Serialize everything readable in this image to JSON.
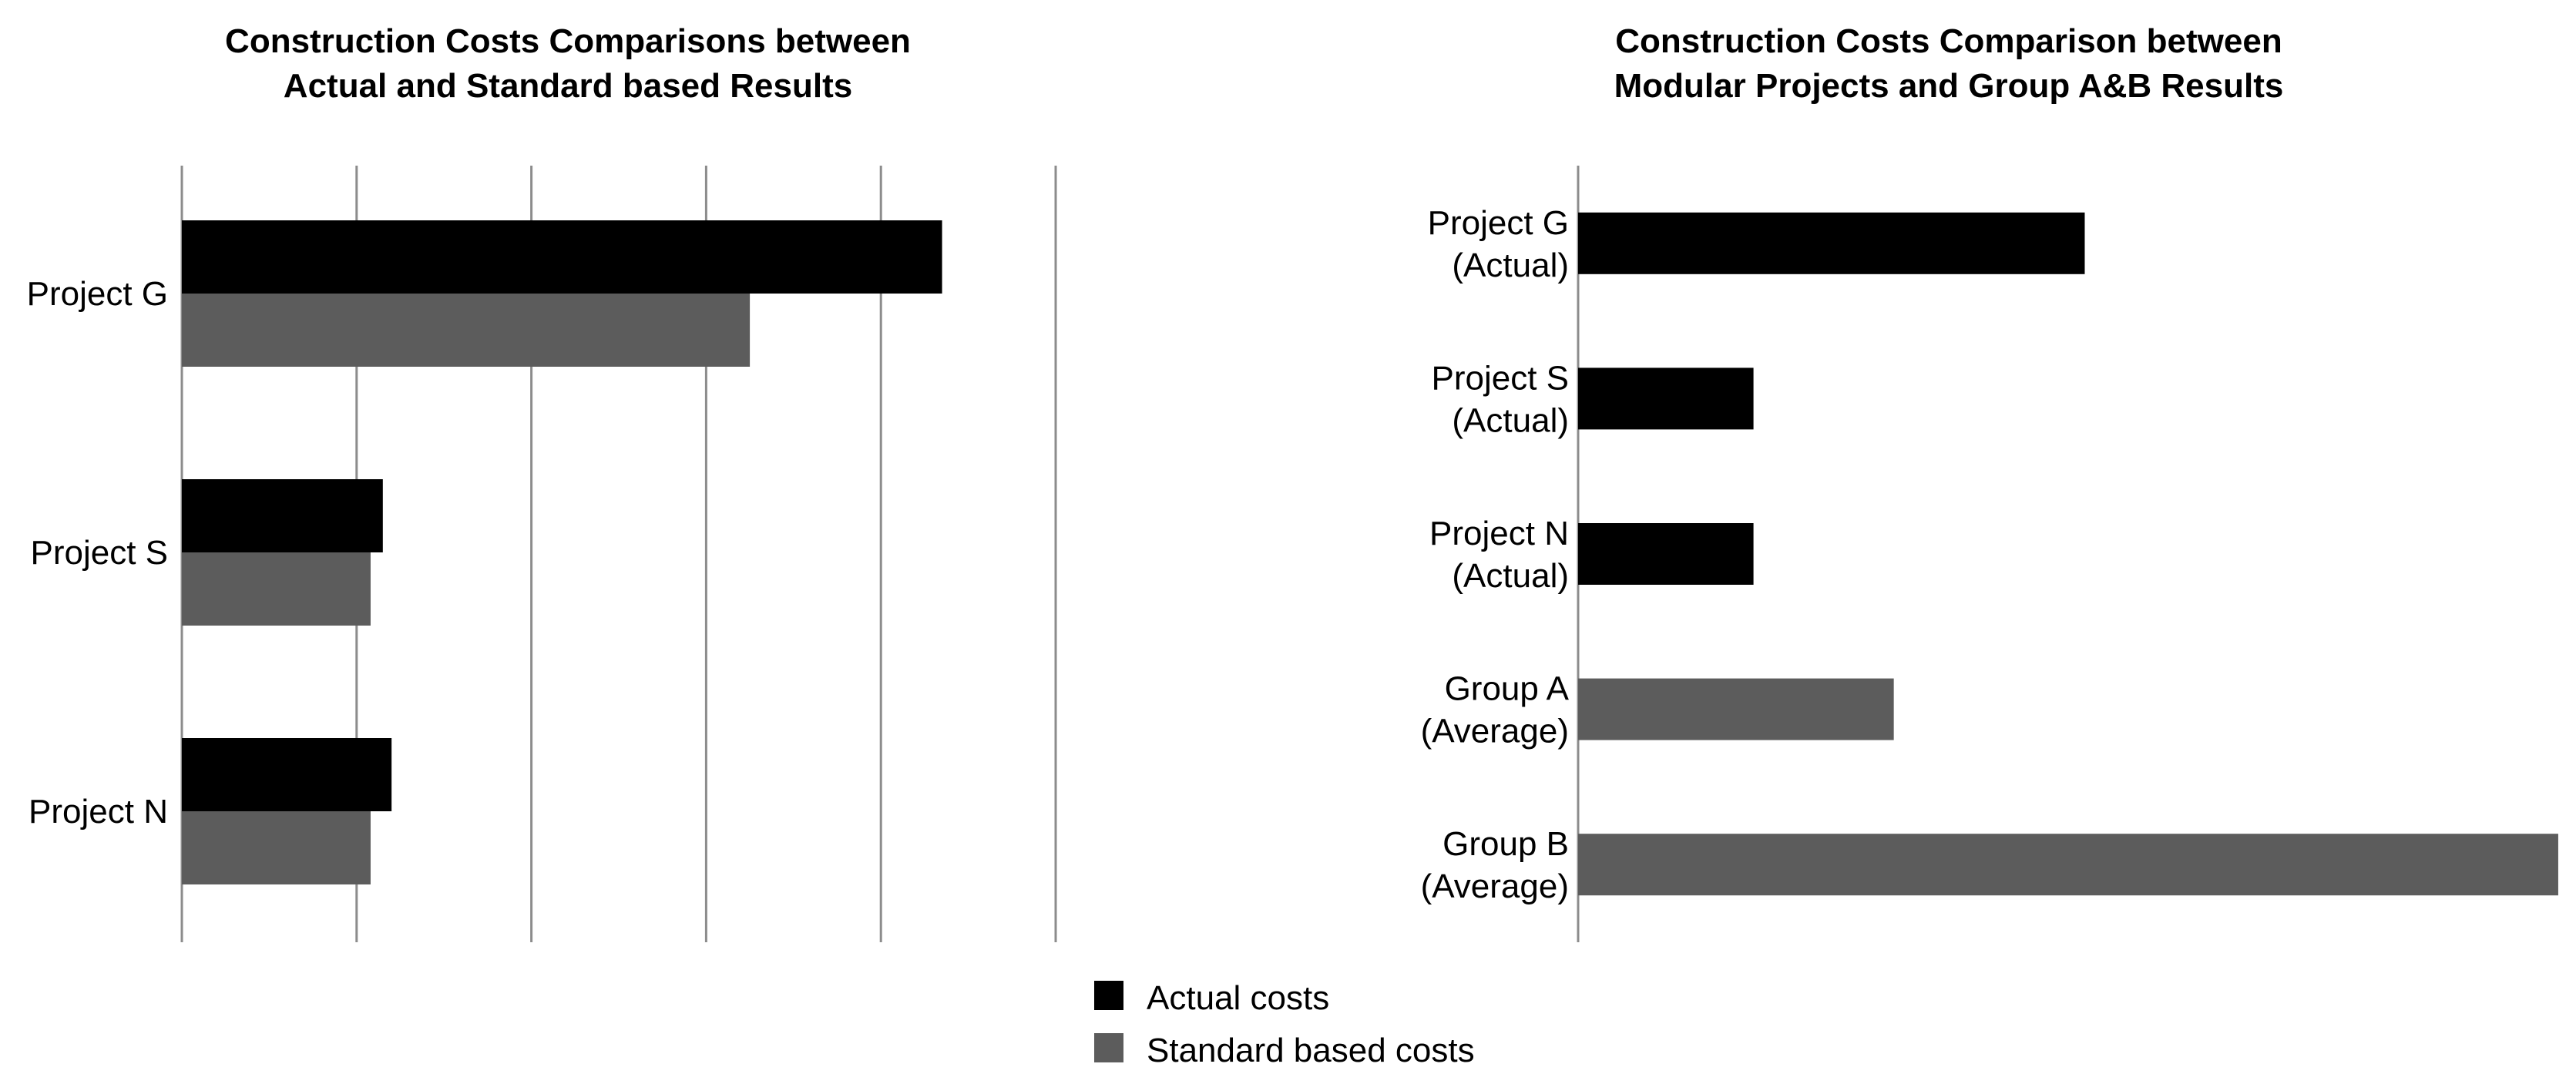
{
  "colors": {
    "actual": "#000000",
    "standard": "#5c5c5c",
    "grid": "#8c8c8c"
  },
  "legend": {
    "actual_label": "Actual costs",
    "standard_label": "Standard based costs"
  },
  "chart_data": [
    {
      "type": "bar",
      "orientation": "horizontal",
      "title": "Construction Costs Comparisons between Actual and Standard based Results",
      "title_lines": [
        "Construction Costs Comparisons between",
        "Actual and Standard based Results"
      ],
      "categories": [
        "Project G",
        "Project S",
        "Project N"
      ],
      "series": [
        {
          "name": "Actual costs",
          "values": [
            4.35,
            1.15,
            1.2
          ]
        },
        {
          "name": "Standard based costs",
          "values": [
            3.25,
            1.08,
            1.08
          ]
        }
      ],
      "xlim": [
        0,
        5
      ],
      "grid": true,
      "tick_labels_visible": false,
      "legend_position": "bottom-center"
    },
    {
      "type": "bar",
      "orientation": "horizontal",
      "title": "Construction Costs Comparison between Modular Projects and Group A&B Results",
      "title_lines": [
        "Construction Costs Comparison between",
        "Modular Projects and Group A&B Results"
      ],
      "categories": [
        [
          "Project G",
          "(Actual)"
        ],
        [
          "Project S",
          "(Actual)"
        ],
        [
          "Project N",
          "(Actual)"
        ],
        [
          "Group A",
          "(Average)"
        ],
        [
          "Group B",
          "(Average)"
        ]
      ],
      "values": [
        2.6,
        0.9,
        0.9,
        1.62,
        5.03
      ],
      "series_of_bar": [
        "Actual costs",
        "Actual costs",
        "Actual costs",
        "Standard based costs",
        "Standard based costs"
      ],
      "xlim": [
        0,
        5.05
      ],
      "grid": false,
      "tick_labels_visible": false
    }
  ]
}
